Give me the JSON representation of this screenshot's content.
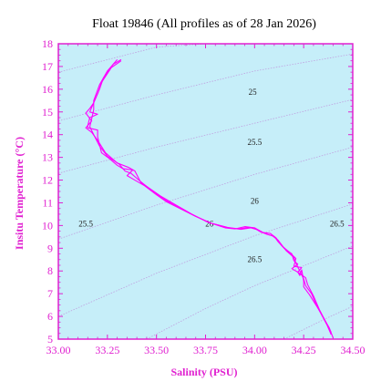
{
  "colors": {
    "axis": "#e020d0",
    "plot_background": "#c6eef9",
    "profile": "#ff00ff",
    "isopycnal": "#c0a0e0",
    "page_background": "#ffffff"
  },
  "chart_data": {
    "type": "scatter",
    "title": "Float 19846  (All profiles as of 28 Jan 2026)",
    "xlabel": "Salinity (PSU)",
    "ylabel": "Insitu Temperature (°C)",
    "xlim": [
      33.0,
      34.5
    ],
    "ylim": [
      5,
      18
    ],
    "xticks": [
      "33.00",
      "33.25",
      "33.50",
      "33.75",
      "34.00",
      "34.25",
      "34.50"
    ],
    "yticks": [
      "5",
      "6",
      "7",
      "8",
      "9",
      "10",
      "11",
      "12",
      "13",
      "14",
      "15",
      "16",
      "17",
      "18"
    ],
    "grid": false,
    "legend": "none",
    "isopycnal_labels": [
      {
        "text": "25",
        "s": 33.99,
        "t": 15.75
      },
      {
        "text": "25.5",
        "s": 34.0,
        "t": 13.55
      },
      {
        "text": "26",
        "s": 34.0,
        "t": 10.95
      },
      {
        "text": "26.5",
        "s": 34.0,
        "t": 8.4
      },
      {
        "text": "25.5",
        "s": 33.14,
        "t": 9.95
      },
      {
        "text": "26",
        "s": 33.77,
        "t": 9.95
      },
      {
        "text": "26.5",
        "s": 34.42,
        "t": 9.95
      }
    ],
    "isopycnals": [
      {
        "name": "25",
        "points": [
          [
            33.0,
            12.3
          ],
          [
            33.5,
            13.45
          ],
          [
            34.0,
            14.5
          ],
          [
            34.5,
            15.55
          ]
        ]
      },
      {
        "name": "24.5",
        "points": [
          [
            33.0,
            14.6
          ],
          [
            33.5,
            15.75
          ],
          [
            34.0,
            16.8
          ],
          [
            34.5,
            17.55
          ]
        ]
      },
      {
        "name": "24",
        "points": [
          [
            33.0,
            16.75
          ],
          [
            33.5,
            17.85
          ],
          [
            33.75,
            18.0
          ]
        ]
      },
      {
        "name": "25.5",
        "points": [
          [
            33.0,
            9.4
          ],
          [
            33.5,
            10.9
          ],
          [
            34.0,
            12.25
          ],
          [
            34.5,
            13.45
          ]
        ]
      },
      {
        "name": "26",
        "points": [
          [
            33.0,
            6.0
          ],
          [
            33.5,
            7.9
          ],
          [
            34.0,
            9.55
          ],
          [
            34.5,
            10.95
          ]
        ]
      },
      {
        "name": "26.5",
        "points": [
          [
            33.45,
            5.0
          ],
          [
            33.75,
            6.35
          ],
          [
            34.0,
            7.35
          ],
          [
            34.5,
            9.1
          ]
        ]
      },
      {
        "name": "27",
        "points": [
          [
            34.15,
            5.0
          ],
          [
            34.35,
            5.85
          ],
          [
            34.5,
            6.45
          ]
        ]
      }
    ],
    "series": [
      {
        "points": [
          [
            33.32,
            17.3
          ],
          [
            33.28,
            17.1
          ],
          [
            33.23,
            16.5
          ],
          [
            33.21,
            16.0
          ],
          [
            33.19,
            15.6
          ],
          [
            33.17,
            15.2
          ],
          [
            33.16,
            15.0
          ],
          [
            33.2,
            14.9
          ],
          [
            33.16,
            14.75
          ],
          [
            33.15,
            14.4
          ],
          [
            33.15,
            14.3
          ],
          [
            33.2,
            14.2
          ],
          [
            33.2,
            13.9
          ],
          [
            33.22,
            13.2
          ],
          [
            33.26,
            12.95
          ],
          [
            33.3,
            12.65
          ],
          [
            33.33,
            12.5
          ],
          [
            33.38,
            12.45
          ],
          [
            33.35,
            12.2
          ],
          [
            33.4,
            11.95
          ],
          [
            33.44,
            11.75
          ],
          [
            33.5,
            11.35
          ],
          [
            33.55,
            11.05
          ],
          [
            33.62,
            10.75
          ],
          [
            33.7,
            10.4
          ],
          [
            33.78,
            10.1
          ],
          [
            33.86,
            9.92
          ],
          [
            33.92,
            9.85
          ],
          [
            33.97,
            9.92
          ],
          [
            34.0,
            9.88
          ],
          [
            34.03,
            9.72
          ],
          [
            34.07,
            9.6
          ],
          [
            34.1,
            9.52
          ],
          [
            34.12,
            9.28
          ],
          [
            34.15,
            9.0
          ],
          [
            34.19,
            8.75
          ],
          [
            34.2,
            8.45
          ],
          [
            34.22,
            8.3
          ],
          [
            34.19,
            8.1
          ],
          [
            34.22,
            7.95
          ],
          [
            34.23,
            7.8
          ],
          [
            34.24,
            8.05
          ],
          [
            34.25,
            7.55
          ],
          [
            34.25,
            7.3
          ],
          [
            34.28,
            6.95
          ],
          [
            34.32,
            6.4
          ],
          [
            34.35,
            5.95
          ],
          [
            34.38,
            5.5
          ],
          [
            34.4,
            5.05
          ]
        ]
      },
      {
        "points": [
          [
            33.32,
            17.25
          ],
          [
            33.27,
            16.95
          ],
          [
            33.22,
            16.3
          ],
          [
            33.2,
            15.8
          ],
          [
            33.18,
            15.4
          ],
          [
            33.16,
            15.15
          ],
          [
            33.14,
            14.95
          ],
          [
            33.17,
            14.6
          ],
          [
            33.14,
            14.3
          ],
          [
            33.17,
            14.1
          ],
          [
            33.2,
            13.75
          ],
          [
            33.24,
            13.2
          ],
          [
            33.3,
            12.75
          ],
          [
            33.36,
            12.55
          ],
          [
            33.39,
            12.4
          ],
          [
            33.42,
            11.9
          ],
          [
            33.47,
            11.6
          ],
          [
            33.52,
            11.3
          ],
          [
            33.6,
            10.9
          ],
          [
            33.68,
            10.5
          ],
          [
            33.76,
            10.15
          ],
          [
            33.85,
            9.9
          ],
          [
            33.9,
            9.85
          ],
          [
            33.95,
            9.95
          ],
          [
            34.0,
            9.9
          ],
          [
            34.04,
            9.7
          ],
          [
            34.08,
            9.65
          ],
          [
            34.11,
            9.45
          ],
          [
            34.14,
            9.1
          ],
          [
            34.18,
            8.8
          ],
          [
            34.21,
            8.55
          ],
          [
            34.2,
            8.2
          ],
          [
            34.24,
            8.15
          ],
          [
            34.22,
            7.95
          ],
          [
            34.26,
            7.7
          ],
          [
            34.27,
            7.4
          ],
          [
            34.3,
            6.9
          ],
          [
            34.33,
            6.3
          ],
          [
            34.36,
            5.8
          ],
          [
            34.39,
            5.3
          ]
        ]
      },
      {
        "points": [
          [
            33.3,
            17.3
          ],
          [
            33.25,
            16.8
          ],
          [
            33.21,
            16.2
          ],
          [
            33.18,
            15.5
          ],
          [
            33.18,
            15.1
          ],
          [
            33.17,
            14.7
          ],
          [
            33.16,
            14.35
          ],
          [
            33.18,
            14.0
          ],
          [
            33.21,
            13.5
          ],
          [
            33.25,
            13.05
          ],
          [
            33.31,
            12.7
          ],
          [
            33.34,
            12.4
          ],
          [
            33.37,
            12.3
          ],
          [
            33.41,
            12.0
          ],
          [
            33.46,
            11.65
          ],
          [
            33.53,
            11.2
          ],
          [
            33.61,
            10.8
          ],
          [
            33.69,
            10.45
          ],
          [
            33.77,
            10.12
          ],
          [
            33.87,
            9.9
          ],
          [
            33.93,
            9.83
          ],
          [
            33.98,
            9.9
          ],
          [
            34.02,
            9.8
          ],
          [
            34.06,
            9.62
          ],
          [
            34.09,
            9.55
          ],
          [
            34.12,
            9.35
          ],
          [
            34.16,
            8.9
          ],
          [
            34.2,
            8.6
          ],
          [
            34.21,
            8.35
          ],
          [
            34.23,
            8.0
          ],
          [
            34.25,
            7.65
          ],
          [
            34.26,
            7.35
          ],
          [
            34.29,
            7.0
          ],
          [
            34.31,
            6.6
          ],
          [
            34.34,
            6.1
          ],
          [
            34.37,
            5.6
          ],
          [
            34.39,
            5.2
          ]
        ]
      }
    ]
  }
}
